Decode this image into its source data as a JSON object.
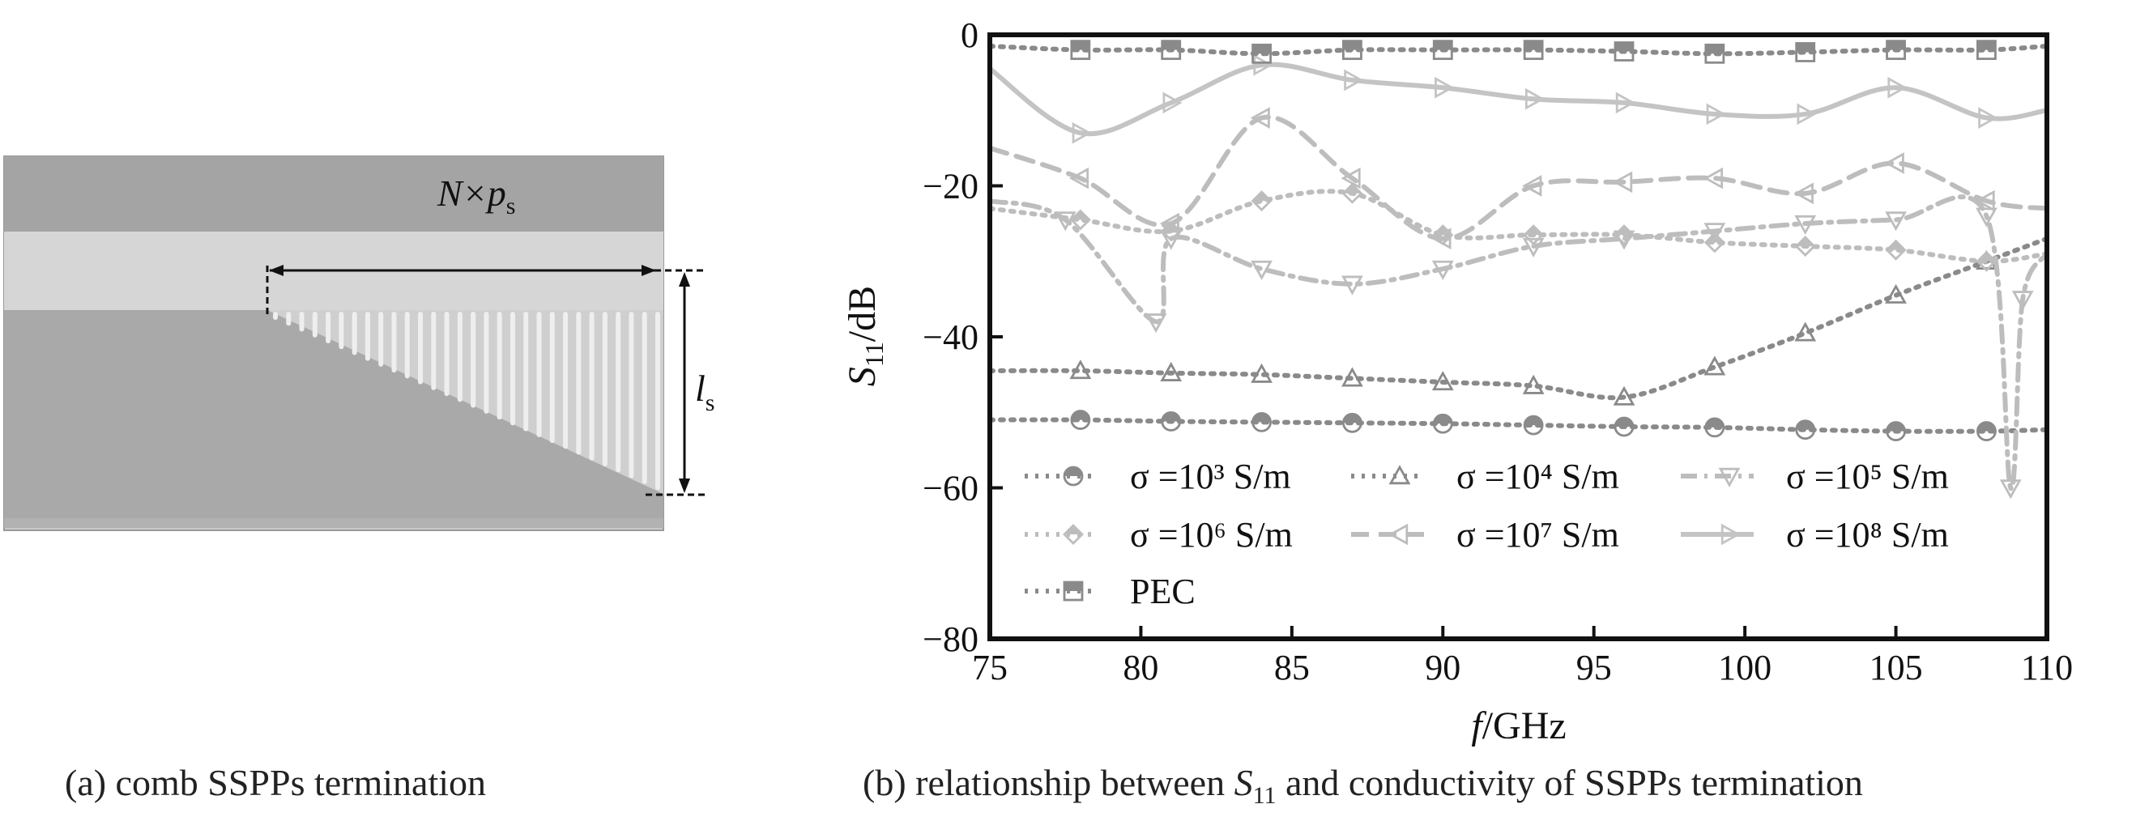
{
  "panel_a": {
    "label_period": "N×p",
    "label_period_sub": "s",
    "label_length": "l",
    "label_length_sub": "s",
    "caption": "(a) comb SSPPs termination"
  },
  "panel_b": {
    "caption_prefix": "(b) relationship between ",
    "caption_s": "S",
    "caption_sub": "11",
    "caption_suffix": " and conductivity of SSPPs termination"
  },
  "chart_data": {
    "type": "line",
    "xlabel": "f/GHz",
    "ylabel": "S11/dB",
    "xlim": [
      75,
      110
    ],
    "ylim": [
      -80,
      0
    ],
    "xticks": [
      75,
      80,
      85,
      90,
      95,
      100,
      105,
      110
    ],
    "yticks": [
      0,
      -20,
      -40,
      -60,
      -80
    ],
    "grid": false,
    "legend_position": "bottom-left inside",
    "series": [
      {
        "name": "σ =10³ S/m",
        "marker": "circle",
        "style": "dot",
        "color": "#8a8a8a",
        "x": [
          75,
          78,
          81,
          84,
          87,
          90,
          93,
          96,
          99,
          102,
          105,
          108,
          110
        ],
        "y": [
          -51,
          -51,
          -51.2,
          -51.3,
          -51.4,
          -51.5,
          -51.7,
          -51.9,
          -52,
          -52.3,
          -52.5,
          -52.5,
          -52.3
        ]
      },
      {
        "name": "σ =10⁴ S/m",
        "marker": "triangle-up",
        "style": "dot",
        "color": "#8a8a8a",
        "x": [
          75,
          78,
          81,
          84,
          87,
          90,
          93,
          96,
          99,
          102,
          105,
          108,
          110
        ],
        "y": [
          -44.5,
          -44.5,
          -44.8,
          -45,
          -45.5,
          -46,
          -46.5,
          -48,
          -44,
          -39.5,
          -34.5,
          -30,
          -27
        ]
      },
      {
        "name": "σ =10⁵ S/m",
        "marker": "triangle-down",
        "style": "dash-dot",
        "color": "#bdbdbd",
        "x": [
          75,
          77.5,
          80.5,
          81,
          84,
          87,
          90,
          93,
          96,
          99,
          102,
          105,
          108,
          108.8,
          109.2,
          110
        ],
        "y": [
          -22,
          -24.5,
          -38,
          -27,
          -31,
          -33,
          -31,
          -28,
          -27,
          -26,
          -25,
          -24.5,
          -24,
          -60,
          -35,
          -29
        ]
      },
      {
        "name": "σ =10⁶ S/m",
        "marker": "diamond",
        "style": "dot",
        "color": "#bdbdbd",
        "x": [
          75,
          78,
          81,
          84,
          87,
          90,
          93,
          96,
          99,
          102,
          105,
          108,
          110
        ],
        "y": [
          -23,
          -24.5,
          -26,
          -22,
          -21,
          -26.5,
          -26.5,
          -26.5,
          -27.5,
          -28,
          -28.5,
          -30,
          -29
        ]
      },
      {
        "name": "σ =10⁷ S/m",
        "marker": "triangle-left",
        "style": "dash",
        "color": "#bdbdbd",
        "x": [
          75,
          78,
          81,
          84,
          87,
          90,
          93,
          96,
          99,
          102,
          105,
          108,
          110
        ],
        "y": [
          -15,
          -19,
          -25,
          -11,
          -19,
          -27,
          -20,
          -19.5,
          -19,
          -21,
          -17,
          -22,
          -23
        ]
      },
      {
        "name": "σ =10⁸ S/m",
        "marker": "triangle-right",
        "style": "solid",
        "color": "#c4c4c4",
        "x": [
          75,
          78,
          81,
          84,
          87,
          90,
          93,
          96,
          99,
          102,
          105,
          108,
          110
        ],
        "y": [
          -4.5,
          -13,
          -9,
          -4,
          -6,
          -7,
          -8.5,
          -9,
          -10.5,
          -10.5,
          -7,
          -11,
          -10
        ]
      },
      {
        "name": "PEC",
        "marker": "square",
        "style": "dot",
        "color": "#8a8a8a",
        "x": [
          75,
          78,
          81,
          84,
          87,
          90,
          93,
          96,
          99,
          102,
          105,
          108,
          110
        ],
        "y": [
          -1.5,
          -2,
          -2,
          -2.5,
          -2,
          -2,
          -2,
          -2.2,
          -2.5,
          -2.3,
          -2,
          -2,
          -1.5
        ]
      }
    ]
  }
}
